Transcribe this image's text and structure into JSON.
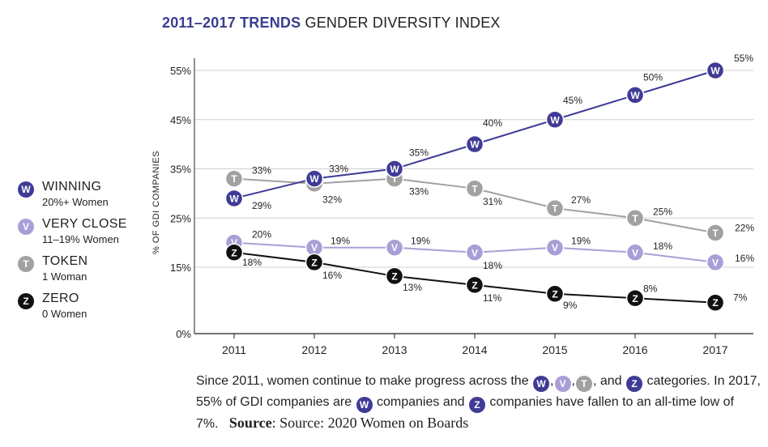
{
  "title": {
    "bold": "2011–2017 TRENDS",
    "rest": " GENDER DIVERSITY INDEX"
  },
  "chart_data": {
    "type": "line",
    "title": "2011–2017 TRENDS GENDER DIVERSITY INDEX",
    "xlabel": "",
    "ylabel": "% OF GDI COMPANIES",
    "x": [
      "2011",
      "2012",
      "2013",
      "2014",
      "2015",
      "2016",
      "2017"
    ],
    "y_ticks": [
      0,
      15,
      25,
      35,
      45,
      55
    ],
    "y_tick_labels": [
      "0%",
      "15%",
      "25%",
      "35%",
      "45%",
      "55%"
    ],
    "ylim": [
      0,
      55
    ],
    "grid": "horizontal",
    "legend_position": "left",
    "series": [
      {
        "name": "WINNING",
        "subtitle": "20%+ Women",
        "badge": "W",
        "color": "#3f3b96",
        "values": [
          29,
          33,
          35,
          40,
          45,
          50,
          55
        ],
        "labels": [
          "29%",
          "33%",
          "35%",
          "40%",
          "45%",
          "50%",
          "55%"
        ]
      },
      {
        "name": "VERY CLOSE",
        "subtitle": "11–19% Women",
        "badge": "V",
        "color": "#a99fd6",
        "values": [
          20,
          19,
          19,
          18,
          19,
          18,
          16
        ],
        "labels": [
          "20%",
          "19%",
          "19%",
          "18%",
          "19%",
          "18%",
          "16%"
        ]
      },
      {
        "name": "TOKEN",
        "subtitle": "1 Woman",
        "badge": "T",
        "color": "#a1a1a1",
        "values": [
          33,
          32,
          33,
          31,
          27,
          25,
          22
        ],
        "labels": [
          "33%",
          "32%",
          "33%",
          "31%",
          "27%",
          "25%",
          "22%"
        ]
      },
      {
        "name": "ZERO",
        "subtitle": "0 Women",
        "badge": "Z",
        "color": "#111111",
        "values": [
          18,
          16,
          13,
          11,
          9,
          8,
          7
        ],
        "labels": [
          "18%",
          "16%",
          "13%",
          "11%",
          "9%",
          "8%",
          "7%"
        ]
      }
    ]
  },
  "caption": {
    "line1": "Since 2011, women continue to make progress across the",
    "sep1": ",",
    "sep2": ",",
    "and": ", and",
    "line2": "categories. In 2017, 55% of GDI companies are",
    "mid": "companies and",
    "line3": "companies have fallen to an all-time low of 7%.",
    "source_label": "Source",
    "source_text": ": Source: 2020 Women on Boards"
  },
  "colors": {
    "winning": "#3f3b96",
    "very_close": "#a99fd6",
    "token": "#a1a1a1",
    "zero": "#111111",
    "grid": "#cfcfcf"
  }
}
